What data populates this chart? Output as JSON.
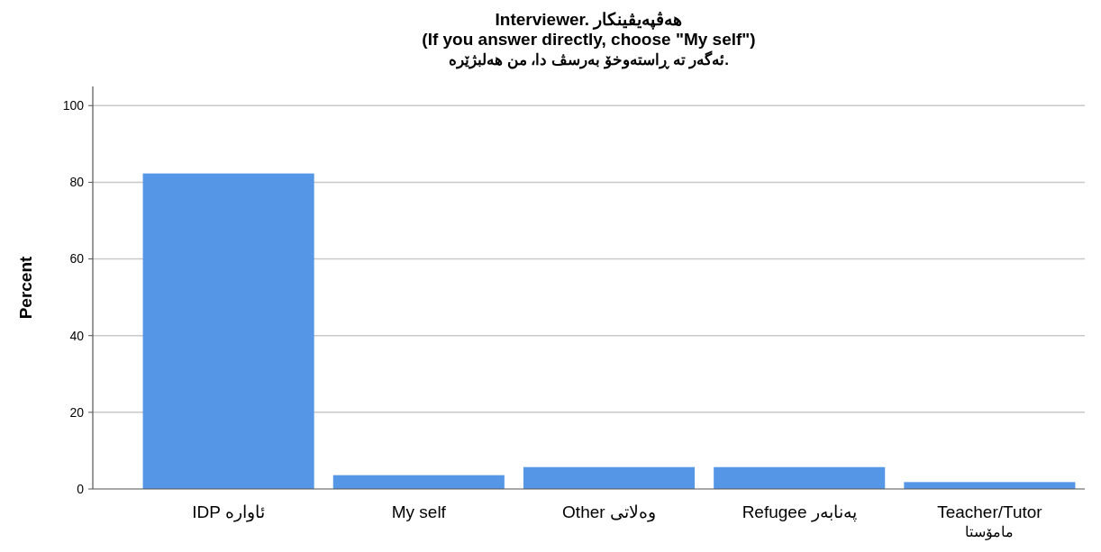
{
  "chart_data": {
    "type": "bar",
    "title": "Interviewer. هەڤپەیڤینکار\n(If you answer directly, choose \"My self\")\nئەگەر تە ڕاستەوخۆ بەرسڤ دا، من هەلبژێرە.",
    "ylabel": "Percent",
    "categories": [
      "IDP  ئاوارە",
      "My self",
      "Other  وەلاتی",
      "Refugee  پەنابەر",
      "Teacher/Tutor\nمامۆستا"
    ],
    "values": [
      82.3,
      3.6,
      5.7,
      5.7,
      1.8
    ],
    "color": "#5596e6",
    "ylim": [
      0,
      105
    ],
    "yticks": [
      0,
      20,
      40,
      60,
      80,
      100
    ],
    "grid": "y"
  }
}
